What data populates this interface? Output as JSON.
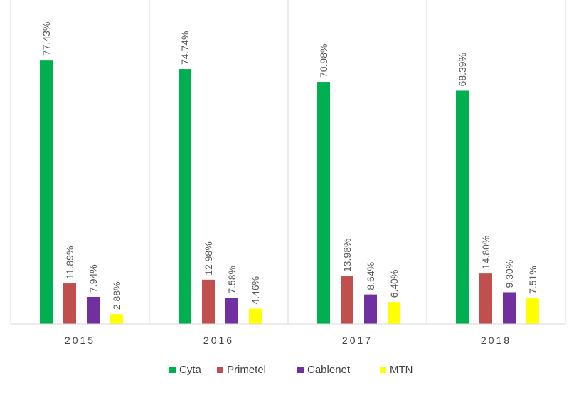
{
  "chart_data": {
    "type": "bar",
    "categories": [
      "2015",
      "2016",
      "2017",
      "2018"
    ],
    "series": [
      {
        "name": "Cyta",
        "values": [
          77.43,
          74.74,
          70.98,
          68.39
        ],
        "labels": [
          "77.43%",
          "74.74%",
          "70.98%",
          "68.39%"
        ],
        "color": "#00b050"
      },
      {
        "name": "Primetel",
        "values": [
          11.89,
          12.98,
          13.98,
          14.8
        ],
        "labels": [
          "11.89%",
          "12.98%",
          "13.98%",
          "14.80%"
        ],
        "color": "#c0504d"
      },
      {
        "name": "Cablenet",
        "values": [
          7.94,
          7.58,
          8.64,
          9.3
        ],
        "labels": [
          "7.94%",
          "7.58%",
          "8.64%",
          "9.30%"
        ],
        "color": "#7030a0"
      },
      {
        "name": "MTN",
        "values": [
          2.88,
          4.46,
          6.4,
          7.51
        ],
        "labels": [
          "2.88%",
          "4.46%",
          "6.40%",
          "7.51%"
        ],
        "color": "#ffff00"
      }
    ],
    "ylim": [
      0,
      95
    ],
    "grid": false,
    "category_dividers": true,
    "legend_position": "bottom"
  }
}
